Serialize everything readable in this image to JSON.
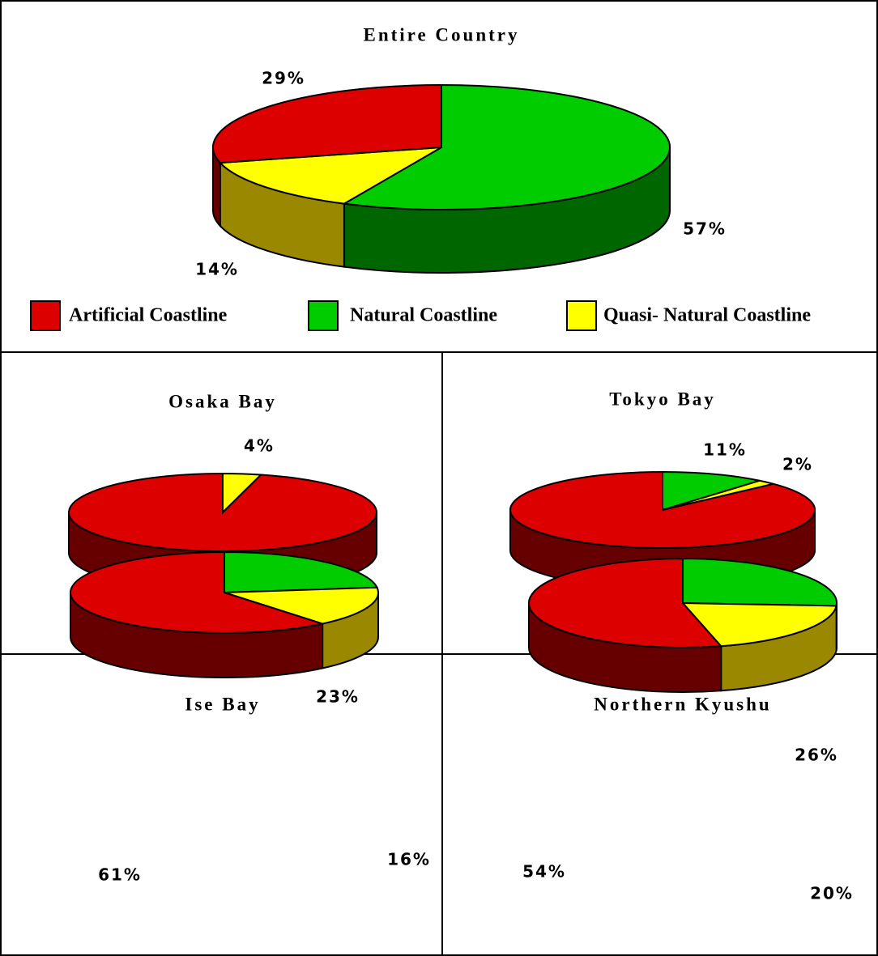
{
  "legend": [
    {
      "name": "Artificial Coastline",
      "color": "#dd0000",
      "side_color": "#660000"
    },
    {
      "name": "Natural Coastline",
      "color": "#00cc00",
      "side_color": "#006600"
    },
    {
      "name": "Quasi- Natural Coastline",
      "color": "#ffff00",
      "side_color": "#998800"
    }
  ],
  "chart_data": [
    {
      "type": "pie",
      "title": "Entire Country",
      "values": [
        29,
        57,
        14
      ],
      "value_labels": [
        "29%",
        "57%",
        "14%"
      ]
    },
    {
      "type": "pie",
      "title": "Osaka Bay",
      "values": [
        96,
        null,
        4
      ],
      "value_labels": [
        "96%",
        null,
        "4%"
      ]
    },
    {
      "type": "pie",
      "title": "Tokyo Bay",
      "values": [
        87,
        11,
        2
      ],
      "value_labels": [
        "87%",
        "11%",
        "2%"
      ]
    },
    {
      "type": "pie",
      "title": "Ise Bay",
      "values": [
        61,
        23,
        16
      ],
      "value_labels": [
        "61%",
        "23%",
        "16%"
      ]
    },
    {
      "type": "pie",
      "title": "Northern Kyushu",
      "values": [
        54,
        26,
        20
      ],
      "value_labels": [
        "54%",
        "26%",
        "20%"
      ]
    }
  ]
}
